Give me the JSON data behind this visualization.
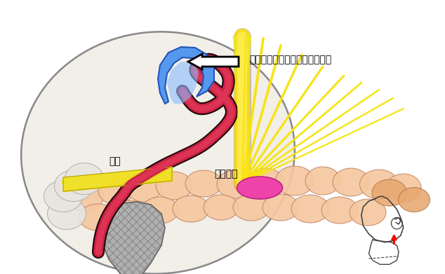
{
  "bg_color": "#ffffff",
  "label_arrow_text": "血管をテープでつり上げて移動",
  "label_vessel_text": "血管",
  "label_nerve_text": "顔面神経",
  "fontsize": 10
}
